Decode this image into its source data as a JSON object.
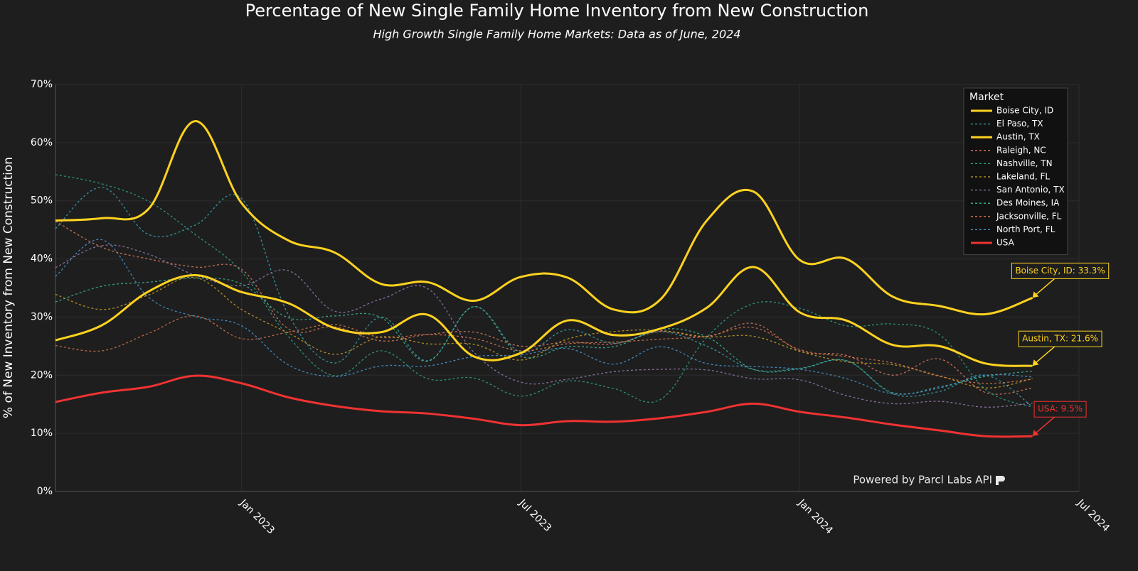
{
  "chart_data": {
    "type": "line",
    "title": "Percentage of New Single Family Home Inventory from New Construction",
    "subtitle": "High Growth Single Family Home Markets: Data as of June, 2024",
    "y_axis_label": "% of New Inventory from New Construction",
    "legend_title": "Market",
    "legend_position": "top-right",
    "watermark": "Powered by Parcl Labs API",
    "grid": true,
    "x": [
      "2022-09",
      "2022-10",
      "2022-11",
      "2022-12",
      "2023-01",
      "2023-02",
      "2023-03",
      "2023-04",
      "2023-05",
      "2023-06",
      "2023-07",
      "2023-08",
      "2023-09",
      "2023-10",
      "2023-11",
      "2023-12",
      "2024-01",
      "2024-02",
      "2024-03",
      "2024-04",
      "2024-05",
      "2024-06"
    ],
    "xlim": [
      "2022-09",
      "2024-07"
    ],
    "xticks": [
      {
        "value": "2023-01",
        "label": "Jan 2023"
      },
      {
        "value": "2023-07",
        "label": "Jul 2023"
      },
      {
        "value": "2024-01",
        "label": "Jan 2024"
      },
      {
        "value": "2024-07",
        "label": "Jul 2024"
      }
    ],
    "ylim": [
      0,
      70
    ],
    "yticks": [
      {
        "value": 0,
        "label": "0%"
      },
      {
        "value": 10,
        "label": "10%"
      },
      {
        "value": 20,
        "label": "20%"
      },
      {
        "value": 30,
        "label": "30%"
      },
      {
        "value": 40,
        "label": "40%"
      },
      {
        "value": 50,
        "label": "50%"
      },
      {
        "value": 60,
        "label": "60%"
      },
      {
        "value": 70,
        "label": "70%"
      }
    ],
    "series": [
      {
        "name": "Boise City, ID",
        "color": "#ffd21f",
        "dash": false,
        "values": [
          46.6,
          47.0,
          48.6,
          63.7,
          49.6,
          43.2,
          41.1,
          35.7,
          36.0,
          32.8,
          36.9,
          36.8,
          31.3,
          33.0,
          46.6,
          51.6,
          39.8,
          40.0,
          33.5,
          31.9,
          30.5,
          33.3
        ]
      },
      {
        "name": "El Paso, TX",
        "color": "#3aa6b0",
        "dash": true,
        "values": [
          45.2,
          52.3,
          44.2,
          45.8,
          50.4,
          30.5,
          22.1,
          30.0,
          22.5,
          31.8,
          24.0,
          27.8,
          25.5,
          27.5,
          25.0,
          21.0,
          21.2,
          22.5,
          16.8,
          17.2,
          20.0,
          14.6
        ]
      },
      {
        "name": "Austin, TX",
        "color": "#ffd21f",
        "dash": false,
        "values": [
          26.0,
          28.6,
          34.4,
          37.2,
          34.3,
          32.4,
          28.1,
          27.4,
          30.4,
          23.2,
          23.8,
          29.4,
          26.9,
          28.0,
          31.6,
          38.6,
          30.8,
          29.4,
          25.2,
          25.0,
          22.0,
          21.6
        ]
      },
      {
        "name": "Raleigh, NC",
        "color": "#e07b5f",
        "dash": true,
        "values": [
          46.5,
          42.0,
          40.0,
          38.6,
          38.2,
          28.0,
          28.3,
          25.9,
          27.0,
          27.4,
          25.0,
          25.7,
          25.4,
          27.5,
          26.6,
          28.9,
          24.2,
          23.4,
          20.0,
          22.8,
          17.0,
          17.8
        ]
      },
      {
        "name": "Nashville, TN",
        "color": "#2fa58c",
        "dash": true,
        "values": [
          54.5,
          52.9,
          49.9,
          44.2,
          37.8,
          26.7,
          19.9,
          24.2,
          19.4,
          19.5,
          16.4,
          19.0,
          17.7,
          15.8,
          26.5,
          32.3,
          31.5,
          28.5,
          28.8,
          27.0,
          17.5,
          14.5
        ]
      },
      {
        "name": "Lakeland, FL",
        "color": "#c9a227",
        "dash": true,
        "values": [
          33.9,
          31.3,
          33.8,
          36.8,
          31.3,
          27.3,
          23.6,
          26.6,
          25.4,
          25.3,
          22.6,
          26.2,
          27.5,
          27.7,
          26.6,
          26.7,
          24.1,
          22.3,
          21.8,
          19.9,
          17.8,
          19.4
        ]
      },
      {
        "name": "San Antonio, TX",
        "color": "#9a7bb5",
        "dash": true,
        "values": [
          38.5,
          42.3,
          40.8,
          37.2,
          35.4,
          38.0,
          31.0,
          33.1,
          34.9,
          23.9,
          18.8,
          19.3,
          20.6,
          21.0,
          20.9,
          19.4,
          19.2,
          16.5,
          15.1,
          15.5,
          14.5,
          15.2
        ]
      },
      {
        "name": "Des Moines, IA",
        "color": "#3cb49a",
        "dash": true,
        "values": [
          32.6,
          35.3,
          36.0,
          36.7,
          35.7,
          29.9,
          30.2,
          29.9,
          22.4,
          31.8,
          23.3,
          24.9,
          24.9,
          27.9,
          26.6,
          21.0,
          21.1,
          22.5,
          17.0,
          18.0,
          19.8,
          20.7
        ]
      },
      {
        "name": "Jacksonville, FL",
        "color": "#d9774b",
        "dash": true,
        "values": [
          25.1,
          24.2,
          27.2,
          30.2,
          26.3,
          27.4,
          28.7,
          26.5,
          27.0,
          26.3,
          24.2,
          25.4,
          25.7,
          26.2,
          26.7,
          28.2,
          24.4,
          23.2,
          22.1,
          19.8,
          18.6,
          19.3
        ]
      },
      {
        "name": "North Port, FL",
        "color": "#4a9ad6",
        "dash": true,
        "values": [
          37.0,
          43.3,
          33.4,
          30.1,
          28.5,
          21.8,
          19.8,
          21.6,
          21.6,
          23.2,
          23.5,
          24.6,
          21.9,
          24.9,
          22.0,
          21.5,
          21.0,
          19.4,
          16.8,
          17.8,
          20.0,
          19.7
        ]
      },
      {
        "name": "USA",
        "color": "#f03232",
        "dash": false,
        "values": [
          15.4,
          17.0,
          18.0,
          19.9,
          18.6,
          16.2,
          14.7,
          13.8,
          13.4,
          12.5,
          11.4,
          12.1,
          12.0,
          12.6,
          13.7,
          15.1,
          13.7,
          12.7,
          11.5,
          10.5,
          9.5,
          9.5
        ]
      }
    ],
    "annotations": [
      {
        "text": "Boise City, ID: 33.3%",
        "x": "2024-06",
        "y": 33.3,
        "color": "#ffd21f"
      },
      {
        "text": "Austin, TX: 21.6%",
        "x": "2024-06",
        "y": 21.6,
        "color": "#ffd21f"
      },
      {
        "text": "USA: 9.5%",
        "x": "2024-06",
        "y": 9.5,
        "color": "#f03232"
      }
    ]
  }
}
